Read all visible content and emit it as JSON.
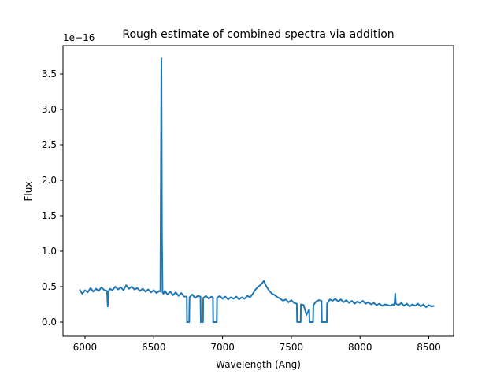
{
  "chart_data": {
    "type": "line",
    "title": "Rough estimate of combined spectra via addition",
    "xlabel": "Wavelength (Ang)",
    "ylabel": "Flux",
    "y_offset_label": "1e−16",
    "xlim": [
      5840,
      8680
    ],
    "ylim": [
      -0.2,
      3.9
    ],
    "xticks": [
      6000,
      6500,
      7000,
      7500,
      8000,
      8500
    ],
    "xtick_labels": [
      "6000",
      "6500",
      "7000",
      "7500",
      "8000",
      "8500"
    ],
    "yticks": [
      0.0,
      0.5,
      1.0,
      1.5,
      2.0,
      2.5,
      3.0,
      3.5
    ],
    "ytick_labels": [
      "0.0",
      "0.5",
      "1.0",
      "1.5",
      "2.0",
      "2.5",
      "3.0",
      "3.5"
    ],
    "grid": false,
    "line_color": "#1f77b4",
    "series": [
      {
        "x": [
          5960,
          5980,
          6000,
          6020,
          6040,
          6060,
          6080,
          6100,
          6120,
          6140,
          6160,
          6165,
          6170,
          6180,
          6200,
          6220,
          6240,
          6260,
          6280,
          6300,
          6320,
          6340,
          6360,
          6380,
          6400,
          6420,
          6440,
          6460,
          6480,
          6500,
          6520,
          6540,
          6548,
          6552,
          6556,
          6560,
          6564,
          6570,
          6580,
          6600,
          6620,
          6640,
          6660,
          6680,
          6700,
          6720,
          6740,
          6742,
          6744,
          6756,
          6758,
          6760,
          6780,
          6800,
          6820,
          6840,
          6842,
          6844,
          6856,
          6858,
          6860,
          6880,
          6900,
          6920,
          6930,
          6932,
          6934,
          6956,
          6958,
          6960,
          6980,
          7000,
          7020,
          7040,
          7060,
          7080,
          7100,
          7120,
          7140,
          7160,
          7180,
          7200,
          7220,
          7240,
          7260,
          7280,
          7300,
          7320,
          7340,
          7360,
          7380,
          7400,
          7420,
          7440,
          7460,
          7480,
          7500,
          7520,
          7540,
          7542,
          7544,
          7566,
          7568,
          7570,
          7590,
          7610,
          7630,
          7632,
          7634,
          7656,
          7658,
          7660,
          7680,
          7700,
          7720,
          7722,
          7724,
          7756,
          7758,
          7760,
          7780,
          7800,
          7820,
          7840,
          7860,
          7880,
          7900,
          7920,
          7940,
          7960,
          7980,
          8000,
          8020,
          8040,
          8060,
          8080,
          8100,
          8120,
          8140,
          8160,
          8180,
          8200,
          8220,
          8240,
          8250,
          8255,
          8260,
          8280,
          8300,
          8320,
          8340,
          8360,
          8380,
          8400,
          8420,
          8440,
          8460,
          8480,
          8500,
          8520,
          8540
        ],
        "values": [
          0.46,
          0.4,
          0.45,
          0.42,
          0.48,
          0.43,
          0.47,
          0.44,
          0.49,
          0.45,
          0.44,
          0.22,
          0.42,
          0.47,
          0.45,
          0.5,
          0.46,
          0.49,
          0.45,
          0.52,
          0.47,
          0.5,
          0.46,
          0.48,
          0.44,
          0.47,
          0.43,
          0.46,
          0.42,
          0.45,
          0.41,
          0.44,
          0.43,
          2.0,
          3.72,
          1.2,
          0.42,
          0.4,
          0.44,
          0.39,
          0.43,
          0.38,
          0.42,
          0.37,
          0.41,
          0.36,
          0.36,
          0.0,
          0.0,
          0.0,
          0.0,
          0.35,
          0.39,
          0.34,
          0.37,
          0.36,
          0.0,
          0.0,
          0.0,
          0.0,
          0.34,
          0.37,
          0.33,
          0.36,
          0.35,
          0.0,
          0.0,
          0.0,
          0.0,
          0.34,
          0.37,
          0.33,
          0.36,
          0.32,
          0.35,
          0.33,
          0.36,
          0.32,
          0.35,
          0.33,
          0.37,
          0.35,
          0.4,
          0.46,
          0.5,
          0.53,
          0.58,
          0.5,
          0.44,
          0.4,
          0.38,
          0.35,
          0.33,
          0.3,
          0.32,
          0.28,
          0.31,
          0.27,
          0.26,
          0.0,
          0.0,
          0.0,
          0.0,
          0.25,
          0.24,
          0.1,
          0.18,
          0.0,
          0.0,
          0.0,
          0.0,
          0.24,
          0.29,
          0.31,
          0.3,
          0.0,
          0.0,
          0.0,
          0.0,
          0.26,
          0.32,
          0.3,
          0.33,
          0.29,
          0.32,
          0.28,
          0.31,
          0.27,
          0.3,
          0.26,
          0.29,
          0.27,
          0.3,
          0.26,
          0.28,
          0.25,
          0.27,
          0.24,
          0.26,
          0.23,
          0.25,
          0.24,
          0.23,
          0.25,
          0.24,
          0.4,
          0.26,
          0.24,
          0.27,
          0.23,
          0.26,
          0.22,
          0.25,
          0.23,
          0.26,
          0.22,
          0.25,
          0.21,
          0.24,
          0.22,
          0.23
        ]
      }
    ]
  }
}
